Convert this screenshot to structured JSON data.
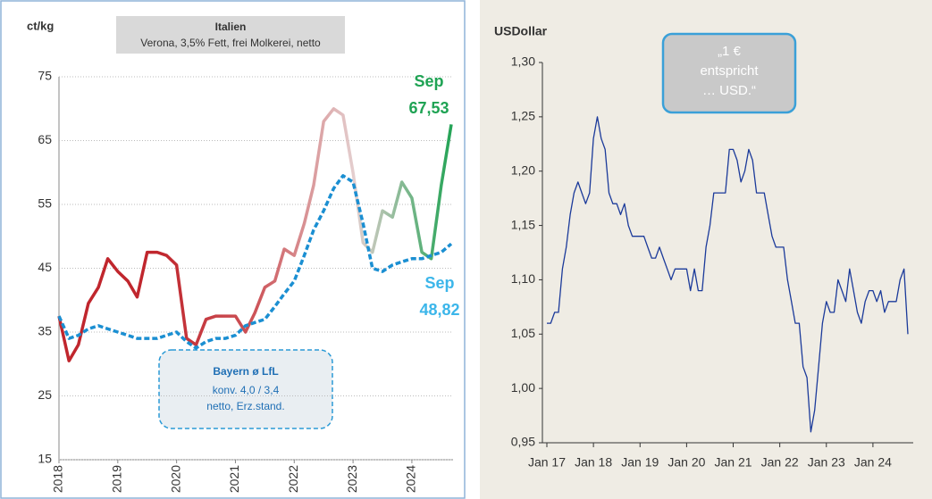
{
  "chart_data": [
    {
      "type": "line",
      "ylabel": "ct/kg",
      "x": [
        2018,
        2018.17,
        2018.33,
        2018.5,
        2018.67,
        2018.83,
        2019,
        2019.17,
        2019.33,
        2019.5,
        2019.67,
        2019.83,
        2020,
        2020.17,
        2020.33,
        2020.5,
        2020.67,
        2020.83,
        2021,
        2021.17,
        2021.33,
        2021.5,
        2021.67,
        2021.83,
        2022,
        2022.17,
        2022.33,
        2022.5,
        2022.67,
        2022.83,
        2023,
        2023.17,
        2023.33,
        2023.5,
        2023.67,
        2023.83,
        2024,
        2024.17,
        2024.33,
        2024.5,
        2024.67
      ],
      "xlim": [
        2018,
        2024.7
      ],
      "xticks": [
        2018,
        2019,
        2020,
        2021,
        2022,
        2023,
        2024
      ],
      "ylim": [
        15,
        75
      ],
      "yticks": [
        15,
        25,
        35,
        45,
        55,
        65,
        75
      ],
      "grid": true,
      "series": [
        {
          "name": "Italien",
          "note": "Verona, 3,5% Fett, frei Molkerei, netto",
          "colors": [
            "#c0262d",
            "#c0262d",
            "#cd5459",
            "#e4cfcf",
            "#21a354"
          ],
          "end_label": "Sep",
          "values": [
            37.5,
            30.5,
            33,
            39.5,
            42,
            46.5,
            44.5,
            43,
            40.5,
            47.5,
            47.5,
            47,
            45.5,
            34,
            33,
            37,
            37.5,
            37.5,
            37.5,
            35,
            38,
            42,
            43,
            48,
            47,
            52,
            58,
            68,
            70,
            69,
            60,
            49,
            47.5,
            54,
            53,
            58.5,
            56,
            47.5,
            46.5,
            58,
            67.53
          ],
          "value_labels": [
            null,
            null,
            null,
            null,
            null,
            null,
            null,
            null,
            null,
            null,
            null,
            null,
            null,
            null,
            null,
            null,
            null,
            null,
            null,
            null,
            null,
            null,
            null,
            null,
            null,
            null,
            null,
            null,
            null,
            null,
            null,
            null,
            null,
            null,
            null,
            null,
            null,
            null,
            null,
            null,
            "67,53"
          ],
          "label_color": "#1fa354"
        },
        {
          "name": "Bayern ø LfL",
          "note": [
            "konv. 4,0 / 3,4",
            "netto, Erz.stand."
          ],
          "color": "#1b8fd2",
          "dashed": true,
          "end_label": "Sep",
          "values": [
            37.5,
            34,
            34.5,
            35.5,
            36,
            35.5,
            35,
            34.5,
            34,
            34,
            34,
            34.5,
            35,
            33.5,
            32.5,
            33.5,
            34,
            34,
            34.5,
            36,
            36.5,
            37,
            39,
            41,
            43,
            47,
            51,
            54,
            57.5,
            59.5,
            58.5,
            52,
            45,
            44.5,
            45.5,
            46,
            46.5,
            46.5,
            47,
            47.5,
            48.82
          ],
          "value_labels": [
            null,
            null,
            null,
            null,
            null,
            null,
            null,
            null,
            null,
            null,
            null,
            null,
            null,
            null,
            null,
            null,
            null,
            null,
            null,
            null,
            null,
            null,
            null,
            null,
            null,
            null,
            null,
            null,
            null,
            null,
            null,
            null,
            null,
            null,
            null,
            null,
            null,
            null,
            null,
            null,
            "48,82"
          ],
          "label_color": "#3cb6ea"
        }
      ]
    },
    {
      "type": "line",
      "ylabel": "USDollar",
      "annotation": [
        "„1 €",
        "entspricht",
        "… USD.“"
      ],
      "categories": [
        "Jan 17",
        null,
        null,
        null,
        null,
        null,
        null,
        null,
        null,
        null,
        null,
        null,
        "Jan 18",
        null,
        null,
        null,
        null,
        null,
        null,
        null,
        null,
        null,
        null,
        null,
        "Jan 19",
        null,
        null,
        null,
        null,
        null,
        null,
        null,
        null,
        null,
        null,
        null,
        "Jan 20",
        null,
        null,
        null,
        null,
        null,
        null,
        null,
        null,
        null,
        null,
        null,
        "Jan 21",
        null,
        null,
        null,
        null,
        null,
        null,
        null,
        null,
        null,
        null,
        null,
        "Jan 22",
        null,
        null,
        null,
        null,
        null,
        null,
        null,
        null,
        null,
        null,
        null,
        "Jan 23",
        null,
        null,
        null,
        null,
        null,
        null,
        null,
        null,
        null,
        null,
        null,
        "Jan 24",
        null,
        null,
        null,
        null,
        null,
        null,
        null,
        null,
        null
      ],
      "ylim": [
        0.95,
        1.3
      ],
      "yticks": [
        {
          "value": 0.95,
          "label": "0,95"
        },
        {
          "value": 1.0,
          "label": "1,00"
        },
        {
          "value": 1.05,
          "label": "1,05"
        },
        {
          "value": 1.1,
          "label": "1,10"
        },
        {
          "value": 1.15,
          "label": "1,15"
        },
        {
          "value": 1.2,
          "label": "1,20"
        },
        {
          "value": 1.25,
          "label": "1,25"
        },
        {
          "value": 1.3,
          "label": "1,30"
        }
      ],
      "series": [
        {
          "color": "#1b3a9a",
          "values": [
            1.06,
            1.06,
            1.07,
            1.07,
            1.11,
            1.13,
            1.16,
            1.18,
            1.19,
            1.18,
            1.17,
            1.18,
            1.23,
            1.25,
            1.23,
            1.22,
            1.18,
            1.17,
            1.17,
            1.16,
            1.17,
            1.15,
            1.14,
            1.14,
            1.14,
            1.14,
            1.13,
            1.12,
            1.12,
            1.13,
            1.12,
            1.11,
            1.1,
            1.11,
            1.11,
            1.11,
            1.11,
            1.09,
            1.11,
            1.09,
            1.09,
            1.13,
            1.15,
            1.18,
            1.18,
            1.18,
            1.18,
            1.22,
            1.22,
            1.21,
            1.19,
            1.2,
            1.22,
            1.21,
            1.18,
            1.18,
            1.18,
            1.16,
            1.14,
            1.13,
            1.13,
            1.13,
            1.1,
            1.08,
            1.06,
            1.06,
            1.02,
            1.01,
            0.96,
            0.98,
            1.02,
            1.06,
            1.08,
            1.07,
            1.07,
            1.1,
            1.09,
            1.08,
            1.11,
            1.09,
            1.07,
            1.06,
            1.08,
            1.09,
            1.09,
            1.08,
            1.09,
            1.07,
            1.08,
            1.08,
            1.08,
            1.1,
            1.11,
            1.05
          ]
        }
      ]
    }
  ]
}
